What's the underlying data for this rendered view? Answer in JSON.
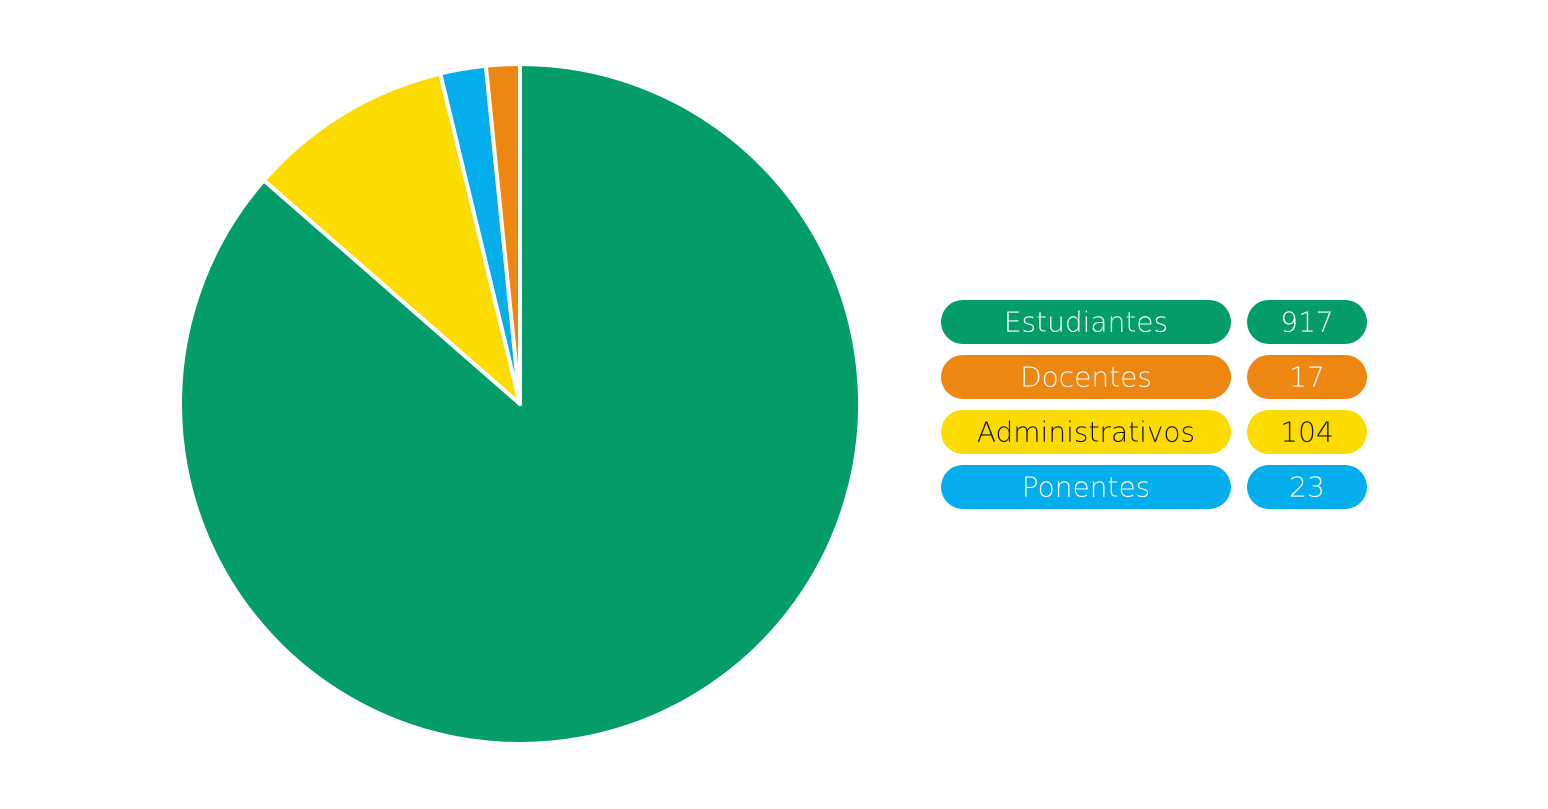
{
  "chart_data": {
    "type": "pie",
    "categories": [
      "Estudiantes",
      "Docentes",
      "Administrativos",
      "Ponentes"
    ],
    "values": [
      917,
      17,
      104,
      23
    ],
    "colors": [
      "#039c6a",
      "#ec8812",
      "#fcdc00",
      "#04aeec"
    ]
  }
}
